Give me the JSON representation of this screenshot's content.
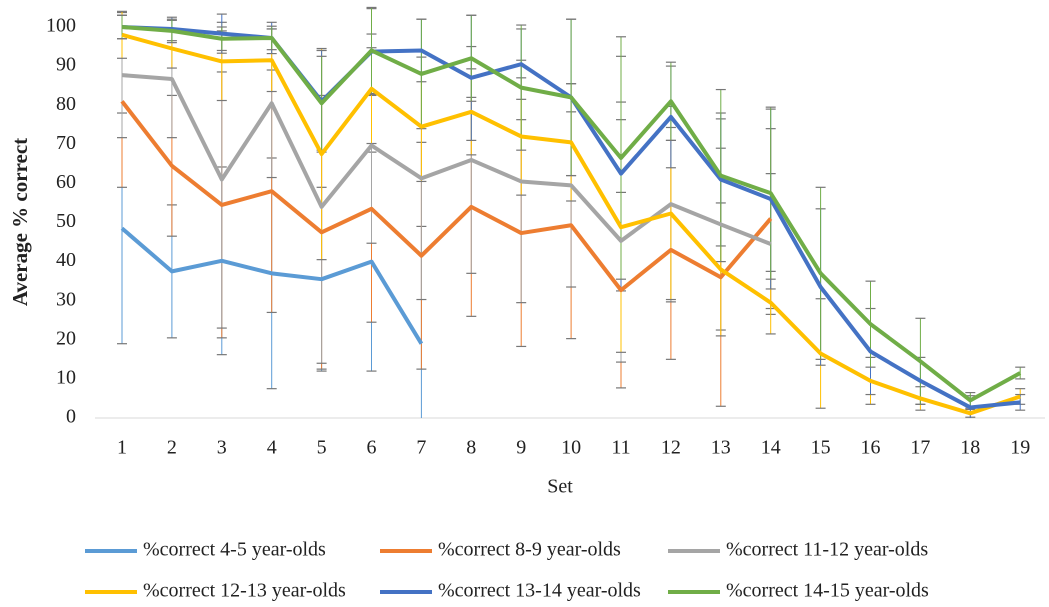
{
  "chart_data": {
    "type": "line",
    "x_label": "Set",
    "y_label": "Average % correct",
    "categories": [
      "1",
      "2",
      "3",
      "4",
      "5",
      "6",
      "7",
      "8",
      "9",
      "10",
      "11",
      "12",
      "13",
      "14",
      "15",
      "16",
      "17",
      "18",
      "19"
    ],
    "ylim": [
      0,
      100
    ],
    "yticks": [
      0,
      10,
      20,
      30,
      40,
      50,
      60,
      70,
      80,
      90,
      100
    ],
    "legend": "bottom",
    "series": [
      {
        "name": "%correct 4-5 year-olds",
        "color": "#5b9bd5",
        "values": [
          48.5,
          37.5,
          40.2,
          37,
          35.5,
          40,
          19,
          null,
          null,
          null,
          null,
          null,
          null,
          null,
          null,
          null,
          null,
          null,
          null
        ],
        "errors": [
          29.5,
          17,
          24,
          29.5,
          23.5,
          28,
          30,
          null,
          null,
          null,
          null,
          null,
          null,
          null,
          null,
          null,
          null,
          null,
          null
        ]
      },
      {
        "name": "%correct 8-9 year-olds",
        "color": "#ed7d31",
        "values": [
          81,
          64.5,
          54.5,
          58,
          47.5,
          53.5,
          41.5,
          54,
          47.3,
          49.3,
          32.7,
          43,
          36,
          51,
          null,
          null,
          null,
          null,
          null
        ],
        "errors": [
          22,
          18,
          34,
          31,
          35,
          29,
          29,
          28,
          29,
          29,
          25,
          28,
          33,
          23,
          null,
          null,
          null,
          null,
          null
        ]
      },
      {
        "name": "%correct 11-12 year-olds",
        "color": "#a5a5a5",
        "values": [
          87.7,
          86.7,
          61,
          80.5,
          54,
          69.7,
          61.3,
          66,
          60.5,
          59.5,
          45.3,
          54.7,
          49.5,
          44.5,
          null,
          null,
          null,
          null,
          null
        ],
        "errors": [
          16,
          15,
          38,
          19,
          40,
          25,
          31,
          29,
          31,
          26,
          31,
          25,
          27,
          18,
          null,
          null,
          null,
          null,
          null
        ]
      },
      {
        "name": "%correct 12-13 year-olds",
        "color": "#ffc000",
        "values": [
          98,
          94.5,
          91.2,
          91.5,
          67.5,
          84.2,
          74.5,
          78.3,
          72,
          70.5,
          48.8,
          52.3,
          38,
          29.5,
          16.5,
          9.5,
          5,
          1.2,
          5.5
        ],
        "errors": [
          6,
          5,
          10,
          8,
          27,
          14,
          14,
          11,
          15,
          15,
          32,
          22,
          17,
          8,
          14,
          6,
          3,
          1,
          2
        ]
      },
      {
        "name": "%correct 13-14 year-olds",
        "color": "#4472c4",
        "values": [
          100,
          99.5,
          98.3,
          97.2,
          81,
          93.7,
          94,
          87,
          90.5,
          82,
          62.5,
          77,
          61,
          56,
          33.5,
          17,
          9.5,
          2.7,
          4
        ],
        "errors": [
          3,
          3,
          5,
          4,
          13,
          11,
          8,
          16,
          9,
          20,
          30,
          13,
          17,
          23,
          20,
          11,
          6,
          3,
          2
        ]
      },
      {
        "name": "%correct 14-15 year-olds",
        "color": "#70ad47",
        "values": [
          100,
          99,
          97,
          97.2,
          80.5,
          94,
          88,
          92,
          84.5,
          82,
          66.5,
          81,
          62,
          57.5,
          37,
          24,
          14.5,
          4.5,
          11.5
        ],
        "errors": [
          3,
          3,
          3,
          3,
          12,
          11,
          14,
          11,
          16,
          20,
          31,
          10,
          22,
          22,
          22,
          11,
          11,
          2,
          1.5
        ]
      }
    ]
  }
}
